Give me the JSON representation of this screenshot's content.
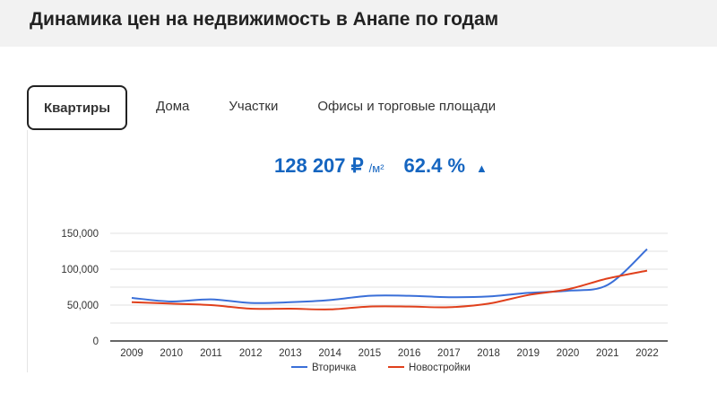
{
  "header": {
    "title": "Динамика цен на недвижимость в Анапе по годам"
  },
  "tabs": [
    {
      "label": "Квартиры",
      "active": true
    },
    {
      "label": "Дома"
    },
    {
      "label": "Участки"
    },
    {
      "label": "Офисы и торговые площади"
    }
  ],
  "stats": {
    "price": "128 207 ₽",
    "unit": "/м²",
    "change": "62.4 %",
    "trend_icon": "▲"
  },
  "colors": {
    "accent": "#1565c0",
    "series1": "#3a6fd8",
    "series2": "#e0401c"
  },
  "chart_data": {
    "type": "line",
    "x": [
      "2009",
      "2010",
      "2011",
      "2012",
      "2013",
      "2014",
      "2015",
      "2016",
      "2017",
      "2018",
      "2019",
      "2020",
      "2021",
      "2022"
    ],
    "y_ticks": [
      "0",
      "50,000",
      "100,000",
      "150,000"
    ],
    "ylim": [
      0,
      150000
    ],
    "series": [
      {
        "name": "Вторичка",
        "values": [
          60000,
          55000,
          58000,
          53000,
          54000,
          57000,
          63000,
          63000,
          61000,
          62000,
          67000,
          70000,
          78000,
          128000
        ]
      },
      {
        "name": "Новостройки",
        "values": [
          54000,
          52000,
          50000,
          45000,
          45000,
          44000,
          48000,
          48000,
          47000,
          52000,
          64000,
          72000,
          87000,
          98000
        ]
      }
    ],
    "legend": "bottom"
  }
}
